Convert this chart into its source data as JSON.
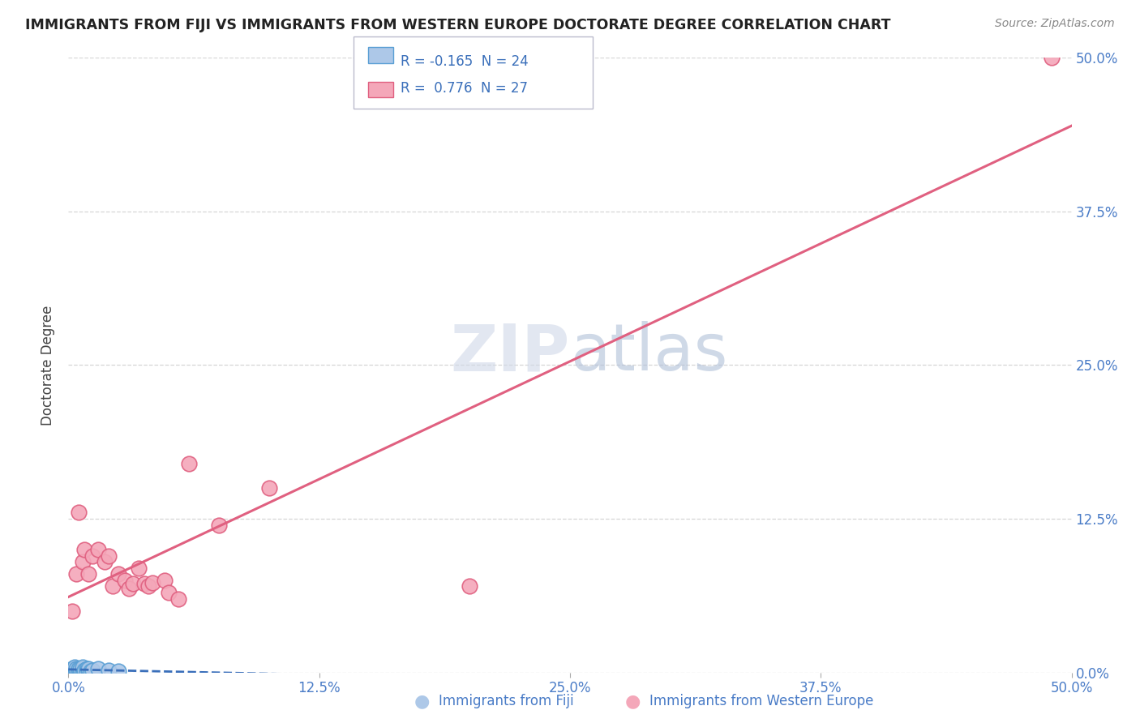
{
  "title": "IMMIGRANTS FROM FIJI VS IMMIGRANTS FROM WESTERN EUROPE DOCTORATE DEGREE CORRELATION CHART",
  "source": "Source: ZipAtlas.com",
  "ylabel": "Doctorate Degree",
  "xlim": [
    0.0,
    0.5
  ],
  "ylim": [
    0.0,
    0.5
  ],
  "xtick_vals": [
    0.0,
    0.125,
    0.25,
    0.375,
    0.5
  ],
  "ytick_vals": [
    0.0,
    0.125,
    0.25,
    0.375,
    0.5
  ],
  "fiji_color": "#adc8e8",
  "fiji_edge": "#5a9fd4",
  "western_europe_color": "#f4a7b9",
  "western_europe_edge": "#e06080",
  "fiji_R": -0.165,
  "fiji_N": 24,
  "western_europe_R": 0.776,
  "western_europe_N": 27,
  "fiji_line_color": "#3a6fba",
  "western_europe_line_color": "#e06080",
  "background_color": "#ffffff",
  "grid_color": "#cccccc",
  "fiji_x": [
    0.001,
    0.002,
    0.002,
    0.003,
    0.003,
    0.004,
    0.004,
    0.005,
    0.005,
    0.006,
    0.006,
    0.007,
    0.007,
    0.008,
    0.008,
    0.009,
    0.009,
    0.01,
    0.01,
    0.011,
    0.012,
    0.015,
    0.02,
    0.025
  ],
  "fiji_y": [
    0.002,
    0.001,
    0.003,
    0.002,
    0.004,
    0.001,
    0.003,
    0.002,
    0.003,
    0.001,
    0.003,
    0.002,
    0.004,
    0.001,
    0.002,
    0.003,
    0.001,
    0.002,
    0.003,
    0.001,
    0.002,
    0.003,
    0.002,
    0.001
  ],
  "western_europe_x": [
    0.002,
    0.004,
    0.005,
    0.007,
    0.008,
    0.01,
    0.012,
    0.015,
    0.018,
    0.02,
    0.022,
    0.025,
    0.028,
    0.03,
    0.032,
    0.035,
    0.038,
    0.04,
    0.042,
    0.048,
    0.05,
    0.055,
    0.06,
    0.075,
    0.1,
    0.2,
    0.49
  ],
  "western_europe_y": [
    0.05,
    0.08,
    0.13,
    0.09,
    0.1,
    0.08,
    0.095,
    0.1,
    0.09,
    0.095,
    0.07,
    0.08,
    0.075,
    0.068,
    0.072,
    0.085,
    0.072,
    0.07,
    0.073,
    0.075,
    0.065,
    0.06,
    0.17,
    0.12,
    0.15,
    0.07,
    0.5
  ],
  "watermark_text": "ZIPatlas",
  "watermark_zip_color": "#d0d8e8",
  "watermark_atlas_color": "#b0c0d8"
}
